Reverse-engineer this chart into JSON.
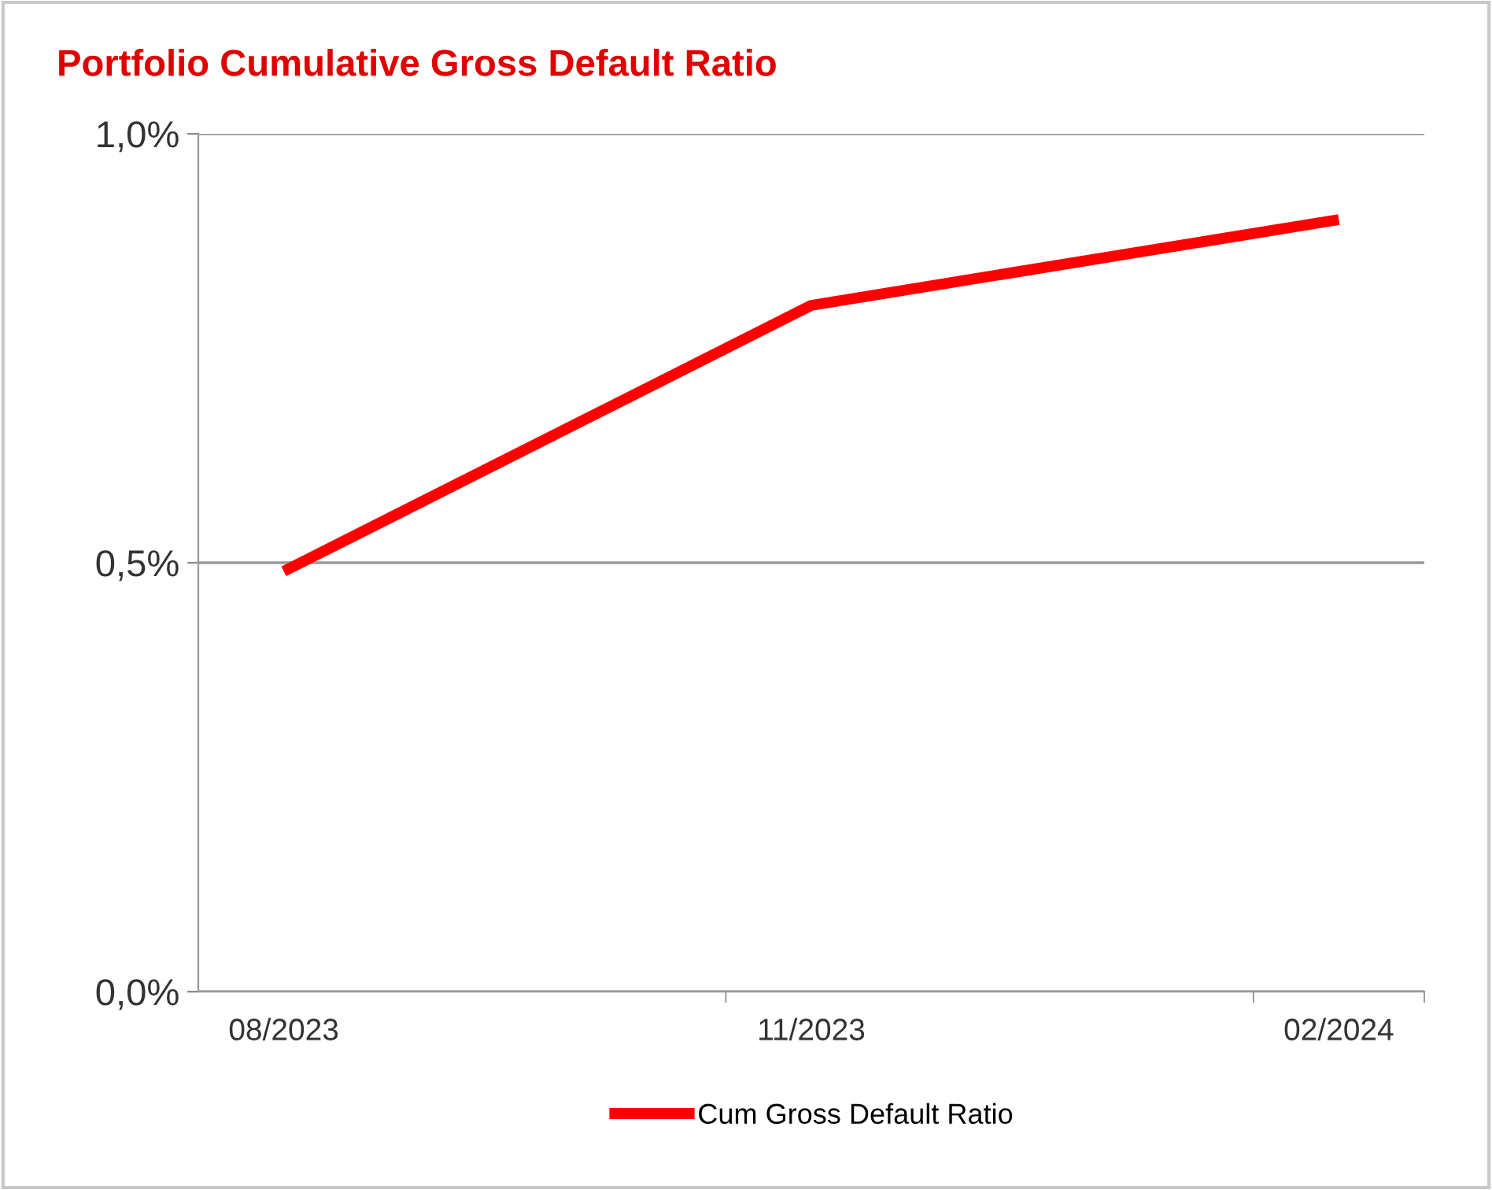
{
  "chart_data": {
    "type": "line",
    "title": "Portfolio Cumulative Gross Default Ratio",
    "categories": [
      "08/2023",
      "11/2023",
      "02/2024"
    ],
    "series": [
      {
        "name": "Cum Gross Default Ratio",
        "color": "#ff0000",
        "values": [
          0.49,
          0.8,
          0.9
        ]
      }
    ],
    "ylim": [
      0,
      1.0
    ],
    "yticks": [
      {
        "value": 0,
        "label": "0,0%"
      },
      {
        "value": 0.5,
        "label": "0,5%"
      },
      {
        "value": 1.0,
        "label": "1,0%"
      }
    ],
    "grid": "y",
    "legend": "bottom",
    "marker": "none",
    "line_style": "solid"
  }
}
